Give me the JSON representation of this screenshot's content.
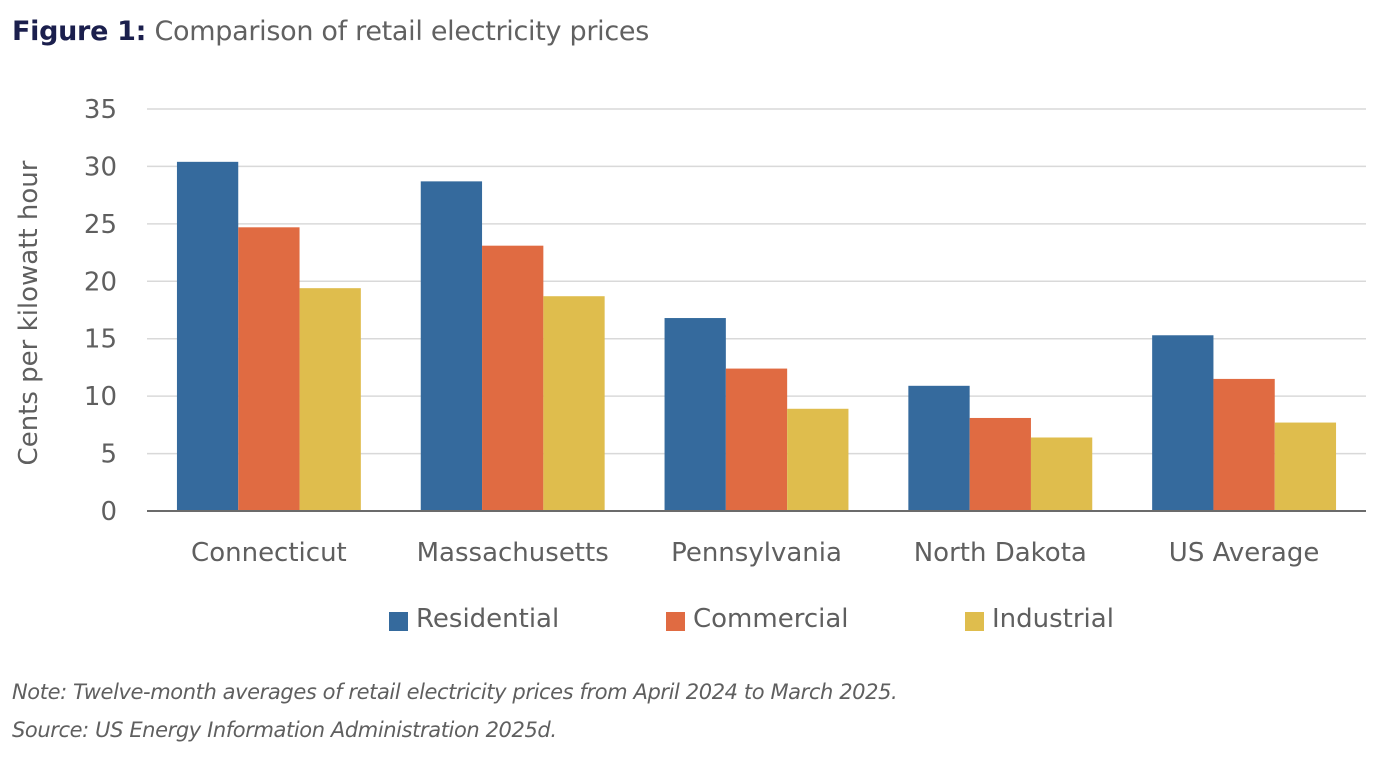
{
  "figure": {
    "label": "Figure 1:",
    "title": "Comparison of retail electricity prices",
    "note": "Note: Twelve-month averages of retail electricity prices from April 2024 to March 2025.",
    "source": "Source: US Energy Information Administration 2025d."
  },
  "chart_data": {
    "type": "bar",
    "title": "Comparison of retail electricity prices",
    "xlabel": "",
    "ylabel": "Cents per kilowatt hour",
    "ylim": [
      0,
      35
    ],
    "yticks": [
      0,
      5,
      10,
      15,
      20,
      25,
      30,
      35
    ],
    "grid": true,
    "legend_position": "bottom",
    "categories": [
      "Connecticut",
      "Massachusetts",
      "Pennsylvania",
      "North Dakota",
      "US Average"
    ],
    "series": [
      {
        "name": "Residential",
        "color": "#356a9d",
        "values": [
          30.4,
          28.7,
          16.8,
          10.9,
          15.3
        ]
      },
      {
        "name": "Commercial",
        "color": "#e06b42",
        "values": [
          24.7,
          23.1,
          12.4,
          8.1,
          11.5
        ]
      },
      {
        "name": "Industrial",
        "color": "#dfbd4d",
        "values": [
          19.4,
          18.7,
          8.9,
          6.4,
          7.7
        ]
      }
    ]
  }
}
